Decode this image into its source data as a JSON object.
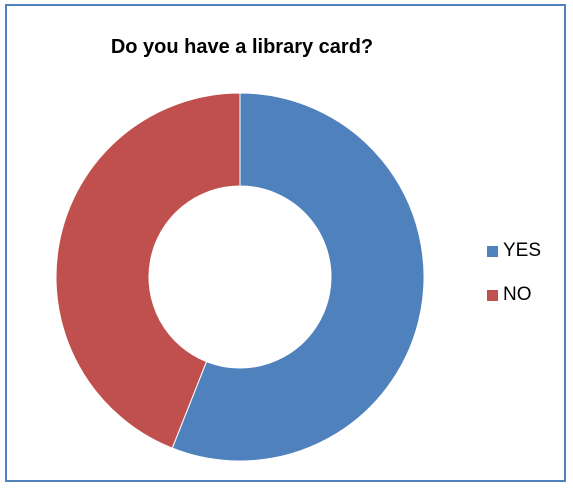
{
  "chart_data": {
    "type": "pie",
    "donut": true,
    "title": "Do you have a library card?",
    "categories": [
      "YES",
      "NO"
    ],
    "values": [
      56,
      44
    ],
    "colors": [
      "#4f81bd",
      "#c0504d"
    ],
    "legend_position": "right"
  }
}
